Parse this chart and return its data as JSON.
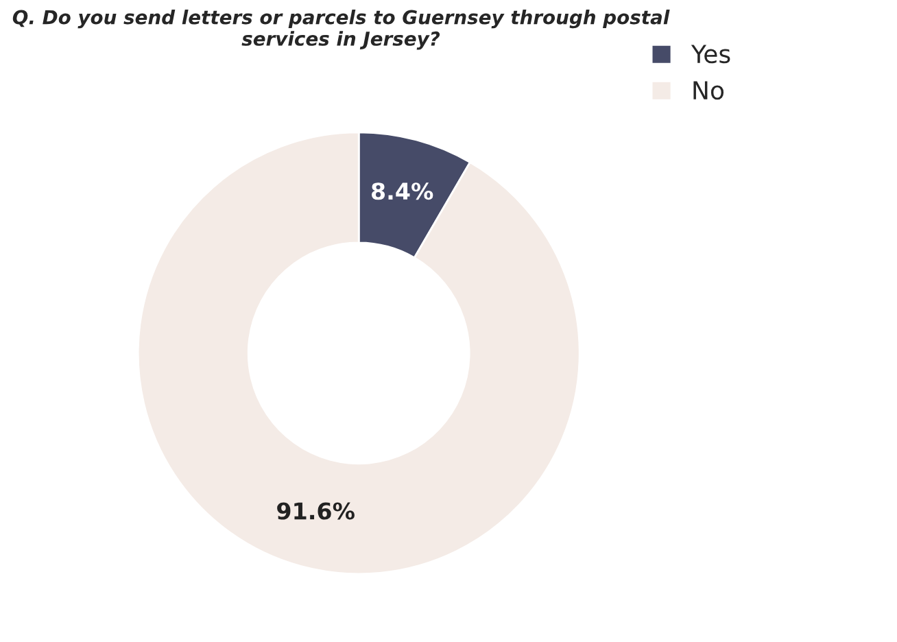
{
  "chart_data": {
    "type": "donut",
    "title": "Q. Do you send letters or parcels to Guernsey through postal\nservices in Jersey?",
    "categories": [
      "Yes",
      "No"
    ],
    "values": [
      8.4,
      91.6
    ],
    "colors": [
      "#464b68",
      "#f4ebe6"
    ],
    "value_labels": [
      "8.4%",
      "91.6%"
    ],
    "legend": "top right"
  }
}
